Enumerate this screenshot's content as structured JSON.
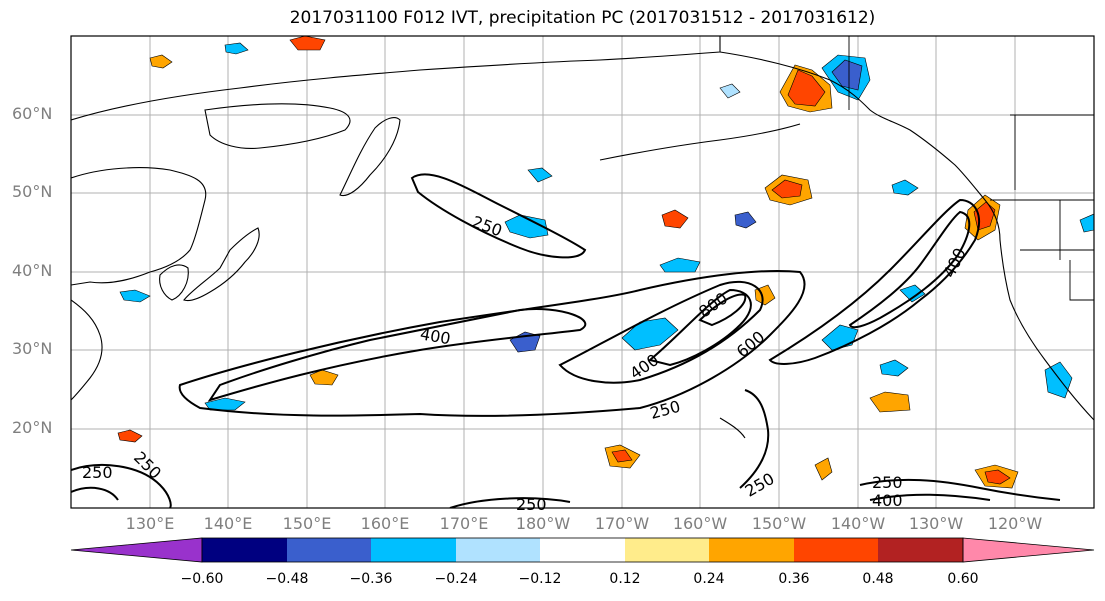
{
  "title": "2017031100 F012 IVT, precipitation PC (2017031512 - 2017031612)",
  "map": {
    "lat_labels": [
      "60°N",
      "50°N",
      "40°N",
      "30°N",
      "20°N"
    ],
    "lon_labels": [
      "130°E",
      "140°E",
      "150°E",
      "160°E",
      "170°E",
      "180°W",
      "170°W",
      "160°W",
      "150°W",
      "140°W",
      "130°W",
      "120°W"
    ],
    "contour_labels": [
      "250",
      "400",
      "250",
      "400",
      "600",
      "800",
      "400",
      "250",
      "250",
      "250",
      "250",
      "400",
      "250"
    ],
    "coastline_color": "#000000",
    "grid_color": "#b0b0b0"
  },
  "colorbar": {
    "colors": [
      "#9932cc",
      "#000080",
      "#3a5fcd",
      "#00bfff",
      "#b0e2ff",
      "#ffffff",
      "#ffec8b",
      "#ffa500",
      "#ff4500",
      "#b22222",
      "#ff88aa"
    ],
    "tick_labels": [
      "−0.60",
      "−0.48",
      "−0.36",
      "−0.24",
      "−0.12",
      "0.12",
      "0.24",
      "0.36",
      "0.48",
      "0.60"
    ]
  }
}
